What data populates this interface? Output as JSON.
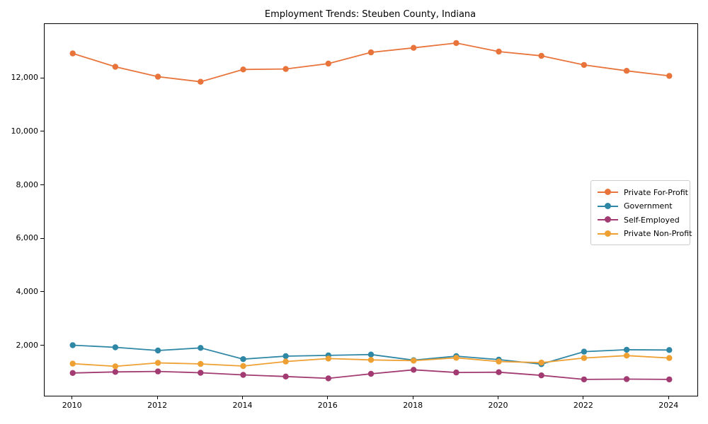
{
  "title": "Employment Trends: Steuben County, Indiana",
  "chart_data": {
    "type": "line",
    "x": [
      2010,
      2011,
      2012,
      2013,
      2014,
      2015,
      2016,
      2017,
      2018,
      2019,
      2020,
      2021,
      2022,
      2023,
      2024
    ],
    "series": [
      {
        "name": "Private For-Profit",
        "color": "#e8743b",
        "values": [
          12940,
          12440,
          12070,
          11880,
          12340,
          12360,
          12560,
          12980,
          13150,
          13330,
          13010,
          12850,
          12510,
          12290,
          12100
        ]
      },
      {
        "name": "Government",
        "color": "#2f87a6",
        "values": [
          2030,
          1950,
          1830,
          1930,
          1510,
          1620,
          1650,
          1680,
          1470,
          1620,
          1490,
          1320,
          1790,
          1860,
          1850
        ]
      },
      {
        "name": "Self-Employed",
        "color": "#a23b72",
        "values": [
          990,
          1030,
          1050,
          1000,
          920,
          860,
          790,
          960,
          1110,
          1010,
          1020,
          900,
          750,
          760,
          750
        ]
      },
      {
        "name": "Private Non-Profit",
        "color": "#efa032",
        "values": [
          1340,
          1240,
          1370,
          1330,
          1250,
          1420,
          1530,
          1480,
          1450,
          1560,
          1420,
          1380,
          1550,
          1640,
          1550
        ]
      }
    ],
    "title": "Employment Trends: Steuben County, Indiana",
    "xlabel": "",
    "ylabel": "",
    "x_tick_labels": [
      "2010",
      "2012",
      "2014",
      "2016",
      "2018",
      "2020",
      "2022",
      "2024"
    ],
    "x_ticks": [
      2010,
      2012,
      2014,
      2016,
      2018,
      2020,
      2022,
      2024
    ],
    "y_tick_labels": [
      "2,000",
      "4,000",
      "6,000",
      "8,000",
      "10,000",
      "12,000"
    ],
    "y_ticks": [
      2000,
      4000,
      6000,
      8000,
      10000,
      12000
    ],
    "xlim": [
      2009.34,
      2024.66
    ],
    "ylim": [
      140,
      14040
    ],
    "grid": false,
    "legend_position": "center right",
    "marker": "circle"
  }
}
